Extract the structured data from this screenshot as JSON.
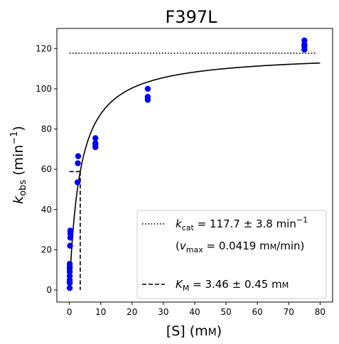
{
  "chart_data": {
    "type": "scatter",
    "title": "F397L",
    "xlabel": {
      "base": "[S] (m",
      "unit_sc": "M",
      "close": ")"
    },
    "ylabel": {
      "base": "k",
      "sub": "obs",
      "mid": " (min",
      "sup": "−1",
      "close": ")"
    },
    "xlim": [
      -4,
      84
    ],
    "ylim": [
      -6,
      130
    ],
    "xticks": [
      0,
      10,
      20,
      30,
      40,
      50,
      60,
      70,
      80
    ],
    "yticks": [
      0,
      20,
      40,
      60,
      80,
      100,
      120
    ],
    "grid": false,
    "legend_position": "lower-right",
    "points": {
      "color": "#0000ff",
      "x": [
        0.1,
        0.1,
        0.1,
        0.1,
        0.1,
        0.1,
        0.1,
        0.1,
        0.1,
        0.2,
        0.3,
        0.3,
        0.3,
        2.6,
        2.7,
        2.8,
        8.3,
        8.3,
        8.3,
        8.3,
        25,
        25,
        25,
        75,
        75,
        75,
        75
      ],
      "y": [
        1,
        3.5,
        5,
        7,
        9,
        10.5,
        11.5,
        13,
        4,
        22,
        26,
        28,
        29.5,
        53.5,
        63,
        66.5,
        71,
        72.5,
        73,
        75.5,
        94.5,
        96,
        100,
        119.5,
        121,
        122,
        124
      ]
    },
    "fit": {
      "kcat": 117.7,
      "km": 3.46,
      "x_range": [
        0,
        80
      ],
      "color": "#000000"
    },
    "kcat_line": {
      "y": 117.7,
      "x_range": [
        0,
        79
      ]
    },
    "km_line": {
      "x": 3.46,
      "y": 58.85,
      "x_start": 0
    },
    "legend": {
      "kcat": {
        "label": "k",
        "sub": "cat",
        "value": " = 117.7 ± 3.8 min",
        "sup": "−1"
      },
      "vmax": {
        "open": "(",
        "label": "v",
        "sub": "max",
        "value": " = 0.0419 m",
        "unit_sc": "M",
        "close": "/min)"
      },
      "km": {
        "label": "K",
        "sub": "M",
        "value": " = 3.46 ± 0.45 m",
        "unit_sc": "M"
      }
    }
  }
}
